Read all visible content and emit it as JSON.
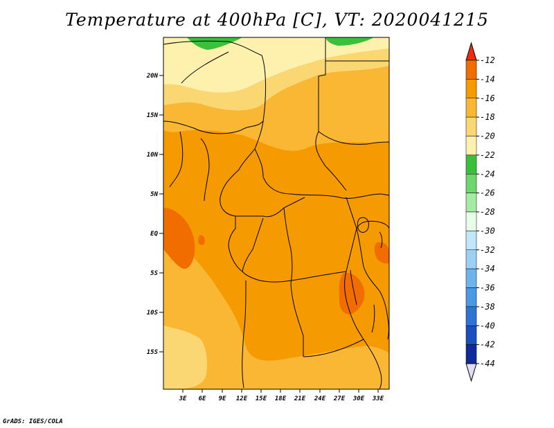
{
  "title": "Temperature at 400hPa [C], VT: 2020041215",
  "footer": "GrADS: IGES/COLA",
  "map": {
    "lat_labels": [
      "20N",
      "15N",
      "10N",
      "5N",
      "EQ",
      "5S",
      "10S",
      "15S"
    ],
    "lon_labels": [
      "3E",
      "6E",
      "9E",
      "12E",
      "15E",
      "18E",
      "21E",
      "24E",
      "27E",
      "30E",
      "33E"
    ]
  },
  "colorbar": {
    "labels": [
      "-12",
      "-14",
      "-16",
      "-18",
      "-20",
      "-22",
      "-24",
      "-26",
      "-28",
      "-30",
      "-32",
      "-34",
      "-36",
      "-38",
      "-40",
      "-42",
      "-44"
    ],
    "colors": [
      "#ee2c0c",
      "#f16d00",
      "#f59a00",
      "#f9b733",
      "#fbd773",
      "#fdf1ad",
      "#3ac03a",
      "#6ed66e",
      "#a4eba4",
      "#e7fde7",
      "#bfe6fa",
      "#9bd0f5",
      "#6db4ee",
      "#4a98e6",
      "#2f73d6",
      "#1a4fbf",
      "#0e2a9c",
      "#070970",
      "#e2dcf7"
    ]
  }
}
